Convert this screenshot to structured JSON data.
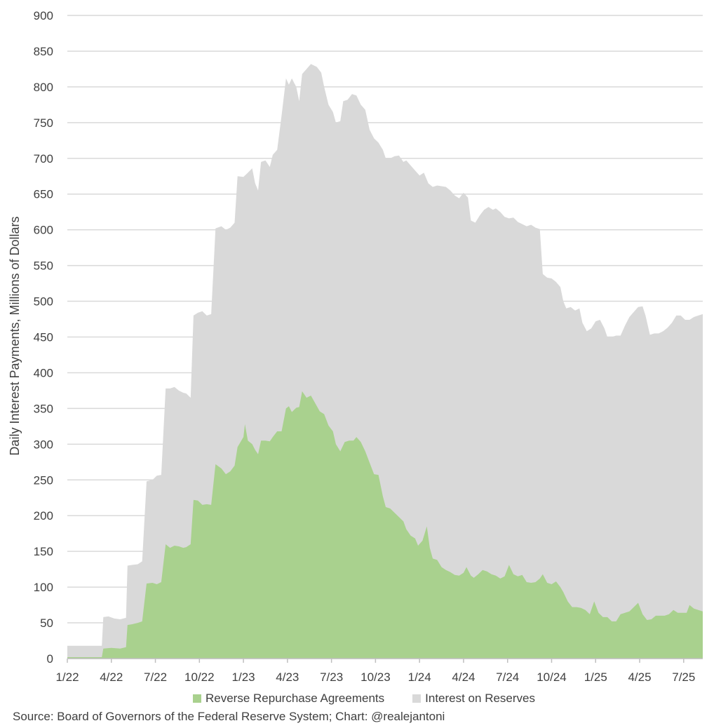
{
  "chart_data": {
    "type": "area",
    "title": "",
    "ylabel": "Daily Interest Payments, Millions of Dollars",
    "xlabel": "",
    "ylim": [
      0,
      900
    ],
    "yticks": [
      0,
      50,
      100,
      150,
      200,
      250,
      300,
      350,
      400,
      450,
      500,
      550,
      600,
      650,
      700,
      750,
      800,
      850,
      900
    ],
    "xlim": [
      0,
      43.3
    ],
    "xticks": [
      {
        "label": "1/22",
        "x": 0
      },
      {
        "label": "4/22",
        "x": 3
      },
      {
        "label": "7/22",
        "x": 6
      },
      {
        "label": "10/22",
        "x": 9
      },
      {
        "label": "1/23",
        "x": 12
      },
      {
        "label": "4/23",
        "x": 15
      },
      {
        "label": "7/23",
        "x": 18
      },
      {
        "label": "10/23",
        "x": 21
      },
      {
        "label": "1/24",
        "x": 24
      },
      {
        "label": "4/24",
        "x": 27
      },
      {
        "label": "7/24",
        "x": 30
      },
      {
        "label": "10/24",
        "x": 33
      },
      {
        "label": "1/25",
        "x": 36
      },
      {
        "label": "4/25",
        "x": 39
      },
      {
        "label": "7/25",
        "x": 42
      }
    ],
    "grid": true,
    "legend_position": "bottom",
    "stacked": true,
    "x_unit_note": "",
    "series": [
      {
        "name": "Interest on Reserves",
        "color": "#d9d9d9",
        "note": "",
        "points": [
          [
            0,
            18
          ],
          [
            2.35,
            18
          ],
          [
            2.45,
            58
          ],
          [
            2.8,
            59
          ],
          [
            3.2,
            56
          ],
          [
            3.6,
            55
          ],
          [
            4.0,
            57
          ],
          [
            4.1,
            130
          ],
          [
            4.4,
            131
          ],
          [
            4.8,
            132
          ],
          [
            5.1,
            136
          ],
          [
            5.4,
            248
          ],
          [
            5.8,
            250
          ],
          [
            6.1,
            256
          ],
          [
            6.4,
            257
          ],
          [
            6.7,
            378
          ],
          [
            7.0,
            378
          ],
          [
            7.3,
            380
          ],
          [
            7.6,
            375
          ],
          [
            7.9,
            372
          ],
          [
            8.1,
            371
          ],
          [
            8.4,
            365
          ],
          [
            8.6,
            480
          ],
          [
            8.9,
            484
          ],
          [
            9.2,
            486
          ],
          [
            9.5,
            480
          ],
          [
            9.8,
            482
          ],
          [
            10.1,
            602
          ],
          [
            10.5,
            605
          ],
          [
            10.8,
            600
          ],
          [
            11.1,
            603
          ],
          [
            11.4,
            610
          ],
          [
            11.6,
            675
          ],
          [
            12.0,
            674
          ],
          [
            12.3,
            680
          ],
          [
            12.6,
            686
          ],
          [
            12.8,
            665
          ],
          [
            13.0,
            655
          ],
          [
            13.2,
            695
          ],
          [
            13.5,
            697
          ],
          [
            13.8,
            688
          ],
          [
            14.0,
            705
          ],
          [
            14.3,
            712
          ],
          [
            14.6,
            760
          ],
          [
            14.9,
            812
          ],
          [
            15.1,
            803
          ],
          [
            15.3,
            812
          ],
          [
            15.6,
            800
          ],
          [
            15.8,
            780
          ],
          [
            16.0,
            818
          ],
          [
            16.3,
            825
          ],
          [
            16.6,
            832
          ],
          [
            17.0,
            828
          ],
          [
            17.3,
            820
          ],
          [
            17.5,
            800
          ],
          [
            17.8,
            775
          ],
          [
            18.1,
            765
          ],
          [
            18.3,
            750
          ],
          [
            18.6,
            752
          ],
          [
            18.8,
            780
          ],
          [
            19.1,
            782
          ],
          [
            19.4,
            790
          ],
          [
            19.7,
            788
          ],
          [
            20.0,
            775
          ],
          [
            20.3,
            768
          ],
          [
            20.6,
            740
          ],
          [
            20.9,
            728
          ],
          [
            21.2,
            722
          ],
          [
            21.5,
            712
          ],
          [
            21.7,
            700
          ],
          [
            22.0,
            700
          ],
          [
            22.3,
            703
          ],
          [
            22.6,
            704
          ],
          [
            22.9,
            695
          ],
          [
            23.1,
            697
          ],
          [
            23.4,
            690
          ],
          [
            23.7,
            683
          ],
          [
            24.0,
            676
          ],
          [
            24.3,
            680
          ],
          [
            24.6,
            665
          ],
          [
            24.9,
            660
          ],
          [
            25.2,
            662
          ],
          [
            25.5,
            661
          ],
          [
            25.8,
            660
          ],
          [
            26.1,
            655
          ],
          [
            26.4,
            648
          ],
          [
            26.7,
            644
          ],
          [
            27.0,
            652
          ],
          [
            27.3,
            645
          ],
          [
            27.5,
            613
          ],
          [
            27.8,
            610
          ],
          [
            28.1,
            620
          ],
          [
            28.4,
            628
          ],
          [
            28.7,
            632
          ],
          [
            29.0,
            628
          ],
          [
            29.2,
            630
          ],
          [
            29.5,
            625
          ],
          [
            29.8,
            618
          ],
          [
            30.1,
            616
          ],
          [
            30.4,
            617
          ],
          [
            30.7,
            611
          ],
          [
            31.0,
            608
          ],
          [
            31.3,
            605
          ],
          [
            31.6,
            607
          ],
          [
            31.9,
            603
          ],
          [
            32.2,
            601
          ],
          [
            32.4,
            538
          ],
          [
            32.7,
            533
          ],
          [
            33.0,
            532
          ],
          [
            33.3,
            527
          ],
          [
            33.6,
            520
          ],
          [
            33.8,
            500
          ],
          [
            34.0,
            490
          ],
          [
            34.3,
            492
          ],
          [
            34.6,
            487
          ],
          [
            34.9,
            490
          ],
          [
            35.1,
            470
          ],
          [
            35.4,
            458
          ],
          [
            35.7,
            462
          ],
          [
            36.0,
            472
          ],
          [
            36.3,
            474
          ],
          [
            36.6,
            462
          ],
          [
            36.8,
            450
          ],
          [
            37.1,
            450
          ],
          [
            37.4,
            452
          ],
          [
            37.7,
            452
          ],
          [
            38.0,
            466
          ],
          [
            38.3,
            478
          ],
          [
            38.6,
            485
          ],
          [
            38.9,
            492
          ],
          [
            39.2,
            493
          ],
          [
            39.4,
            480
          ],
          [
            39.7,
            453
          ],
          [
            40.0,
            455
          ],
          [
            40.3,
            455
          ],
          [
            40.6,
            458
          ],
          [
            40.9,
            463
          ],
          [
            41.2,
            470
          ],
          [
            41.5,
            480
          ],
          [
            41.8,
            480
          ],
          [
            42.1,
            474
          ],
          [
            42.4,
            474
          ],
          [
            42.7,
            478
          ],
          [
            43.0,
            480
          ],
          [
            43.3,
            482
          ]
        ]
      },
      {
        "name": "Reverse Repurchase Agreements",
        "color": "#a9d18e",
        "note": "",
        "points": [
          [
            0,
            2
          ],
          [
            2.35,
            2
          ],
          [
            2.45,
            14
          ],
          [
            3.0,
            15
          ],
          [
            3.6,
            14
          ],
          [
            4.0,
            16
          ],
          [
            4.1,
            47
          ],
          [
            4.4,
            48
          ],
          [
            4.8,
            50
          ],
          [
            5.1,
            52
          ],
          [
            5.4,
            105
          ],
          [
            5.8,
            106
          ],
          [
            6.1,
            104
          ],
          [
            6.4,
            107
          ],
          [
            6.7,
            160
          ],
          [
            7.0,
            155
          ],
          [
            7.3,
            158
          ],
          [
            7.6,
            157
          ],
          [
            7.9,
            155
          ],
          [
            8.1,
            156
          ],
          [
            8.4,
            160
          ],
          [
            8.6,
            222
          ],
          [
            8.9,
            221
          ],
          [
            9.2,
            215
          ],
          [
            9.5,
            216
          ],
          [
            9.8,
            215
          ],
          [
            10.1,
            272
          ],
          [
            10.5,
            266
          ],
          [
            10.8,
            258
          ],
          [
            11.1,
            262
          ],
          [
            11.4,
            270
          ],
          [
            11.6,
            296
          ],
          [
            12.0,
            310
          ],
          [
            12.1,
            328
          ],
          [
            12.3,
            305
          ],
          [
            12.6,
            300
          ],
          [
            12.8,
            292
          ],
          [
            13.0,
            286
          ],
          [
            13.2,
            305
          ],
          [
            13.5,
            305
          ],
          [
            13.8,
            304
          ],
          [
            14.0,
            310
          ],
          [
            14.3,
            318
          ],
          [
            14.6,
            318
          ],
          [
            14.9,
            350
          ],
          [
            15.1,
            353
          ],
          [
            15.3,
            345
          ],
          [
            15.6,
            351
          ],
          [
            15.8,
            352
          ],
          [
            16.0,
            374
          ],
          [
            16.3,
            365
          ],
          [
            16.6,
            368
          ],
          [
            16.9,
            357
          ],
          [
            17.2,
            346
          ],
          [
            17.5,
            342
          ],
          [
            17.8,
            326
          ],
          [
            18.1,
            318
          ],
          [
            18.3,
            300
          ],
          [
            18.6,
            290
          ],
          [
            18.9,
            303
          ],
          [
            19.2,
            305
          ],
          [
            19.5,
            305
          ],
          [
            19.7,
            310
          ],
          [
            20.0,
            303
          ],
          [
            20.3,
            290
          ],
          [
            20.6,
            274
          ],
          [
            20.9,
            258
          ],
          [
            21.2,
            257
          ],
          [
            21.5,
            227
          ],
          [
            21.7,
            212
          ],
          [
            22.0,
            210
          ],
          [
            22.3,
            204
          ],
          [
            22.6,
            198
          ],
          [
            22.9,
            192
          ],
          [
            23.1,
            181
          ],
          [
            23.4,
            172
          ],
          [
            23.7,
            168
          ],
          [
            23.9,
            158
          ],
          [
            24.2,
            165
          ],
          [
            24.5,
            185
          ],
          [
            24.7,
            155
          ],
          [
            24.9,
            140
          ],
          [
            25.2,
            138
          ],
          [
            25.5,
            128
          ],
          [
            25.8,
            124
          ],
          [
            26.1,
            121
          ],
          [
            26.4,
            117
          ],
          [
            26.7,
            116
          ],
          [
            27.0,
            120
          ],
          [
            27.2,
            128
          ],
          [
            27.5,
            116
          ],
          [
            27.7,
            113
          ],
          [
            28.0,
            118
          ],
          [
            28.3,
            124
          ],
          [
            28.6,
            122
          ],
          [
            28.9,
            118
          ],
          [
            29.2,
            116
          ],
          [
            29.5,
            112
          ],
          [
            29.8,
            115
          ],
          [
            30.1,
            131
          ],
          [
            30.4,
            118
          ],
          [
            30.7,
            115
          ],
          [
            31.0,
            117
          ],
          [
            31.3,
            107
          ],
          [
            31.6,
            106
          ],
          [
            31.9,
            107
          ],
          [
            32.2,
            112
          ],
          [
            32.4,
            118
          ],
          [
            32.7,
            106
          ],
          [
            33.0,
            104
          ],
          [
            33.3,
            108
          ],
          [
            33.6,
            100
          ],
          [
            33.8,
            93
          ],
          [
            34.1,
            80
          ],
          [
            34.4,
            72
          ],
          [
            34.7,
            72
          ],
          [
            35.0,
            71
          ],
          [
            35.3,
            68
          ],
          [
            35.6,
            62
          ],
          [
            35.9,
            80
          ],
          [
            36.2,
            64
          ],
          [
            36.5,
            58
          ],
          [
            36.8,
            58
          ],
          [
            37.1,
            52
          ],
          [
            37.4,
            52
          ],
          [
            37.7,
            62
          ],
          [
            38.0,
            64
          ],
          [
            38.3,
            66
          ],
          [
            38.6,
            72
          ],
          [
            38.9,
            78
          ],
          [
            39.2,
            62
          ],
          [
            39.5,
            54
          ],
          [
            39.8,
            55
          ],
          [
            40.1,
            60
          ],
          [
            40.4,
            60
          ],
          [
            40.7,
            60
          ],
          [
            41.0,
            62
          ],
          [
            41.3,
            68
          ],
          [
            41.6,
            64
          ],
          [
            41.9,
            64
          ],
          [
            42.2,
            64
          ],
          [
            42.4,
            75
          ],
          [
            42.7,
            70
          ],
          [
            43.0,
            68
          ],
          [
            43.3,
            66
          ]
        ]
      }
    ]
  },
  "legend": {
    "items": [
      {
        "label": "Reverse Repurchase Agreements",
        "color": "#a9d18e"
      },
      {
        "label": "Interest on Reserves",
        "color": "#d9d9d9"
      }
    ]
  },
  "source": "Source: Board of Governors of the Federal Reserve System; Chart: @realejantoni"
}
